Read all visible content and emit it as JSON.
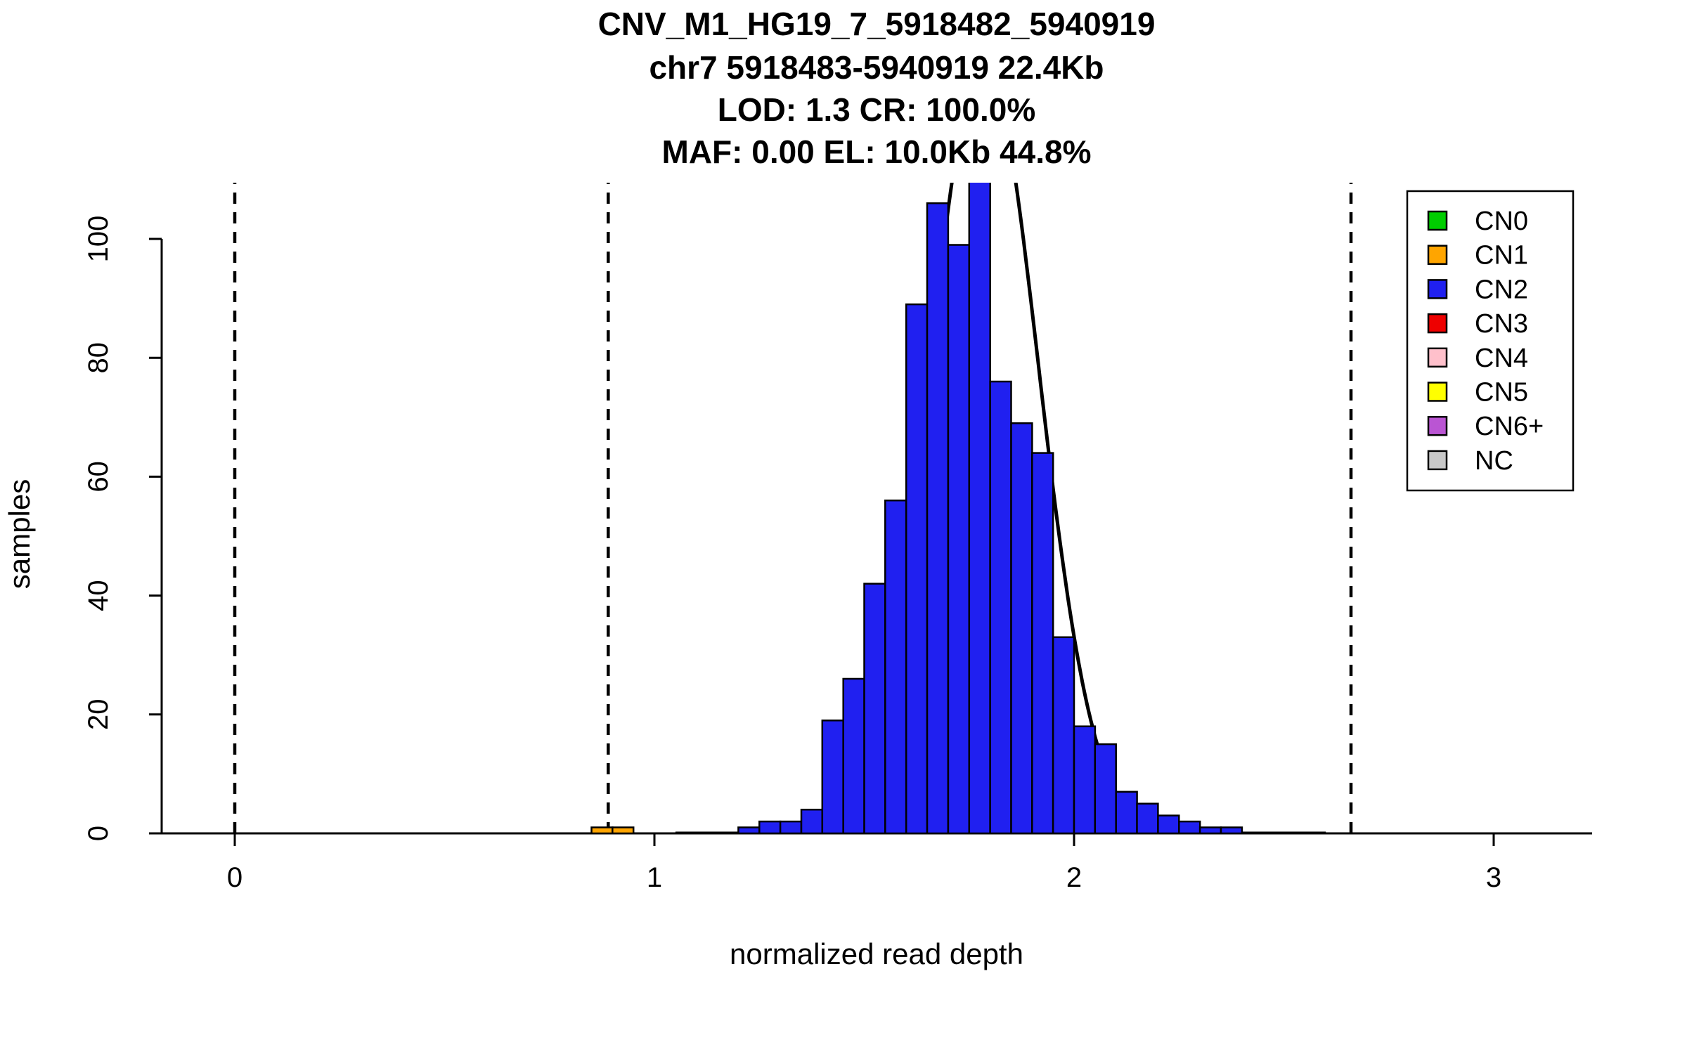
{
  "title_lines": [
    "CNV_M1_HG19_7_5918482_5940919",
    "chr7 5918483-5940919 22.4Kb",
    "LOD: 1.3 CR: 100.0%",
    "MAF: 0.00 EL: 10.0Kb 44.8%"
  ],
  "chart_data": {
    "type": "bar",
    "subtype": "histogram",
    "title": "CNV_M1_HG19_7_5918482_5940919",
    "xlabel": "normalized read depth",
    "ylabel": "samples",
    "xlim": [
      -0.17,
      3.23
    ],
    "ylim": [
      0,
      109.5
    ],
    "x_ticks": [
      0,
      1,
      2,
      3
    ],
    "y_ticks": [
      0,
      20,
      40,
      60,
      80,
      100
    ],
    "bin_width": 0.05,
    "grid": false,
    "series": [
      {
        "name": "CN2",
        "color": "#2020F0",
        "bins": [
          [
            1.2,
            1
          ],
          [
            1.25,
            2
          ],
          [
            1.3,
            2
          ],
          [
            1.35,
            4
          ],
          [
            1.4,
            19
          ],
          [
            1.45,
            26
          ],
          [
            1.5,
            42
          ],
          [
            1.55,
            56
          ],
          [
            1.6,
            89
          ],
          [
            1.65,
            106
          ],
          [
            1.7,
            99
          ],
          [
            1.75,
            112
          ],
          [
            1.8,
            76
          ],
          [
            1.85,
            69
          ],
          [
            1.9,
            64
          ],
          [
            1.95,
            33
          ],
          [
            2.0,
            18
          ],
          [
            2.05,
            15
          ],
          [
            2.1,
            7
          ],
          [
            2.15,
            5
          ],
          [
            2.2,
            3
          ],
          [
            2.25,
            2
          ],
          [
            2.3,
            1
          ],
          [
            2.35,
            1
          ]
        ]
      },
      {
        "name": "CN1",
        "color": "#FFA500",
        "bins": [
          [
            0.85,
            1
          ],
          [
            0.9,
            1
          ]
        ]
      }
    ],
    "dashed_lines_x": [
      0,
      0.89,
      1.775,
      2.66
    ],
    "density_curve": {
      "mean": 1.785,
      "sd": 0.13,
      "peak": 130
    },
    "legend": {
      "position": "top-right",
      "items": [
        {
          "label": "CN0",
          "color": "#00CD00"
        },
        {
          "label": "CN1",
          "color": "#FFA500"
        },
        {
          "label": "CN2",
          "color": "#2020F0"
        },
        {
          "label": "CN3",
          "color": "#EE0000"
        },
        {
          "label": "CN4",
          "color": "#FFC0CB"
        },
        {
          "label": "CN5",
          "color": "#FFFF00"
        },
        {
          "label": "CN6+",
          "color": "#BA55D3"
        },
        {
          "label": "NC",
          "color": "#C8C8C8"
        }
      ]
    },
    "colors": {
      "bar_stroke": "#000000",
      "curve": "#000000",
      "dashed_line": "#000000",
      "axis": "#000000",
      "background": "#FFFFFF"
    }
  }
}
